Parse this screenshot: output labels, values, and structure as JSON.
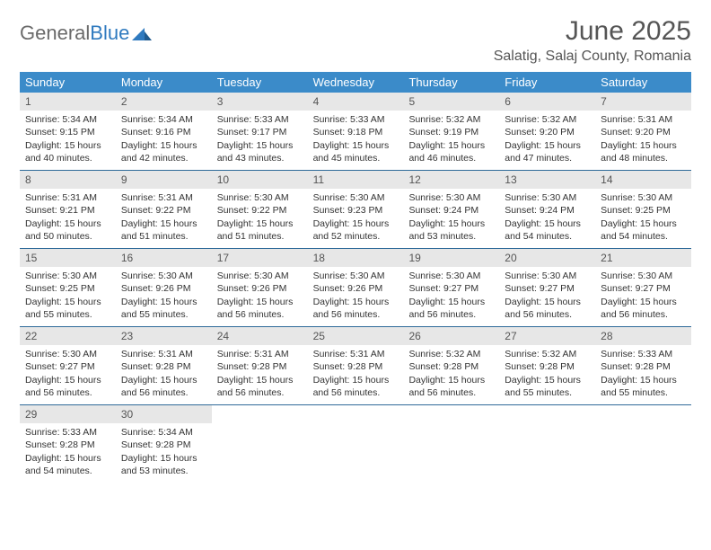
{
  "brand": {
    "part1": "General",
    "part2": "Blue"
  },
  "title": "June 2025",
  "location": "Salatig, Salaj County, Romania",
  "colors": {
    "header_bg": "#3b8bc9",
    "header_text": "#ffffff",
    "daynum_bg": "#e7e7e7",
    "week_border": "#2f6a99",
    "title_color": "#555555",
    "text_color": "#333333"
  },
  "weekdays": [
    "Sunday",
    "Monday",
    "Tuesday",
    "Wednesday",
    "Thursday",
    "Friday",
    "Saturday"
  ],
  "layout": {
    "columns": 7,
    "first_weekday_index": 0
  },
  "days": [
    {
      "n": 1,
      "sunrise": "5:34 AM",
      "sunset": "9:15 PM",
      "daylight": "15 hours and 40 minutes."
    },
    {
      "n": 2,
      "sunrise": "5:34 AM",
      "sunset": "9:16 PM",
      "daylight": "15 hours and 42 minutes."
    },
    {
      "n": 3,
      "sunrise": "5:33 AM",
      "sunset": "9:17 PM",
      "daylight": "15 hours and 43 minutes."
    },
    {
      "n": 4,
      "sunrise": "5:33 AM",
      "sunset": "9:18 PM",
      "daylight": "15 hours and 45 minutes."
    },
    {
      "n": 5,
      "sunrise": "5:32 AM",
      "sunset": "9:19 PM",
      "daylight": "15 hours and 46 minutes."
    },
    {
      "n": 6,
      "sunrise": "5:32 AM",
      "sunset": "9:20 PM",
      "daylight": "15 hours and 47 minutes."
    },
    {
      "n": 7,
      "sunrise": "5:31 AM",
      "sunset": "9:20 PM",
      "daylight": "15 hours and 48 minutes."
    },
    {
      "n": 8,
      "sunrise": "5:31 AM",
      "sunset": "9:21 PM",
      "daylight": "15 hours and 50 minutes."
    },
    {
      "n": 9,
      "sunrise": "5:31 AM",
      "sunset": "9:22 PM",
      "daylight": "15 hours and 51 minutes."
    },
    {
      "n": 10,
      "sunrise": "5:30 AM",
      "sunset": "9:22 PM",
      "daylight": "15 hours and 51 minutes."
    },
    {
      "n": 11,
      "sunrise": "5:30 AM",
      "sunset": "9:23 PM",
      "daylight": "15 hours and 52 minutes."
    },
    {
      "n": 12,
      "sunrise": "5:30 AM",
      "sunset": "9:24 PM",
      "daylight": "15 hours and 53 minutes."
    },
    {
      "n": 13,
      "sunrise": "5:30 AM",
      "sunset": "9:24 PM",
      "daylight": "15 hours and 54 minutes."
    },
    {
      "n": 14,
      "sunrise": "5:30 AM",
      "sunset": "9:25 PM",
      "daylight": "15 hours and 54 minutes."
    },
    {
      "n": 15,
      "sunrise": "5:30 AM",
      "sunset": "9:25 PM",
      "daylight": "15 hours and 55 minutes."
    },
    {
      "n": 16,
      "sunrise": "5:30 AM",
      "sunset": "9:26 PM",
      "daylight": "15 hours and 55 minutes."
    },
    {
      "n": 17,
      "sunrise": "5:30 AM",
      "sunset": "9:26 PM",
      "daylight": "15 hours and 56 minutes."
    },
    {
      "n": 18,
      "sunrise": "5:30 AM",
      "sunset": "9:26 PM",
      "daylight": "15 hours and 56 minutes."
    },
    {
      "n": 19,
      "sunrise": "5:30 AM",
      "sunset": "9:27 PM",
      "daylight": "15 hours and 56 minutes."
    },
    {
      "n": 20,
      "sunrise": "5:30 AM",
      "sunset": "9:27 PM",
      "daylight": "15 hours and 56 minutes."
    },
    {
      "n": 21,
      "sunrise": "5:30 AM",
      "sunset": "9:27 PM",
      "daylight": "15 hours and 56 minutes."
    },
    {
      "n": 22,
      "sunrise": "5:30 AM",
      "sunset": "9:27 PM",
      "daylight": "15 hours and 56 minutes."
    },
    {
      "n": 23,
      "sunrise": "5:31 AM",
      "sunset": "9:28 PM",
      "daylight": "15 hours and 56 minutes."
    },
    {
      "n": 24,
      "sunrise": "5:31 AM",
      "sunset": "9:28 PM",
      "daylight": "15 hours and 56 minutes."
    },
    {
      "n": 25,
      "sunrise": "5:31 AM",
      "sunset": "9:28 PM",
      "daylight": "15 hours and 56 minutes."
    },
    {
      "n": 26,
      "sunrise": "5:32 AM",
      "sunset": "9:28 PM",
      "daylight": "15 hours and 56 minutes."
    },
    {
      "n": 27,
      "sunrise": "5:32 AM",
      "sunset": "9:28 PM",
      "daylight": "15 hours and 55 minutes."
    },
    {
      "n": 28,
      "sunrise": "5:33 AM",
      "sunset": "9:28 PM",
      "daylight": "15 hours and 55 minutes."
    },
    {
      "n": 29,
      "sunrise": "5:33 AM",
      "sunset": "9:28 PM",
      "daylight": "15 hours and 54 minutes."
    },
    {
      "n": 30,
      "sunrise": "5:34 AM",
      "sunset": "9:28 PM",
      "daylight": "15 hours and 53 minutes."
    }
  ],
  "labels": {
    "sunrise": "Sunrise:",
    "sunset": "Sunset:",
    "daylight": "Daylight:"
  }
}
